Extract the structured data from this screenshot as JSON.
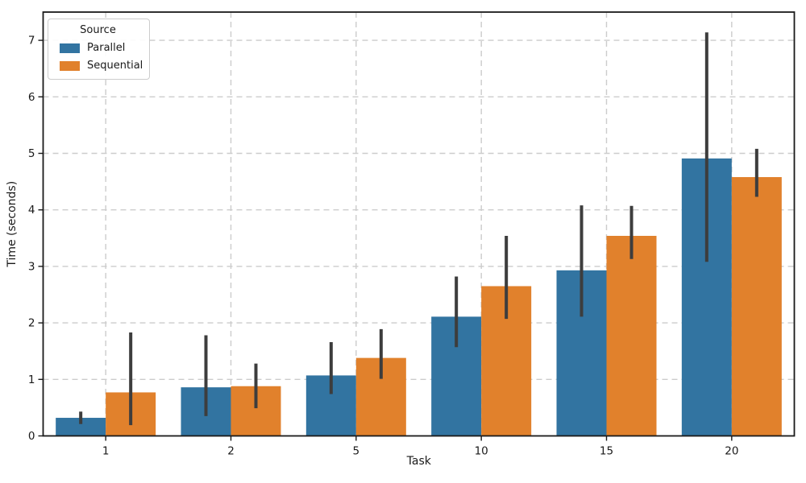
{
  "chart_data": {
    "type": "bar",
    "title": "",
    "xlabel": "Task",
    "ylabel": "Time (seconds)",
    "categories": [
      "1",
      "2",
      "5",
      "10",
      "15",
      "20"
    ],
    "series": [
      {
        "name": "Parallel",
        "color": "#3274a1",
        "values": [
          0.32,
          0.86,
          1.07,
          2.11,
          2.93,
          4.91
        ],
        "ci_low": [
          0.21,
          0.35,
          0.74,
          1.57,
          2.11,
          3.08
        ],
        "ci_high": [
          0.43,
          1.78,
          1.66,
          2.82,
          4.08,
          7.14
        ]
      },
      {
        "name": "Sequential",
        "color": "#e1812c",
        "values": [
          0.77,
          0.88,
          1.38,
          2.65,
          3.54,
          4.58
        ],
        "ci_low": [
          0.19,
          0.49,
          1.01,
          2.07,
          3.13,
          4.23
        ],
        "ci_high": [
          1.83,
          1.28,
          1.89,
          3.54,
          4.07,
          5.08
        ]
      }
    ],
    "yticks": [
      0,
      1,
      2,
      3,
      4,
      5,
      6,
      7
    ],
    "ylim": [
      0,
      7.5
    ],
    "grid": true,
    "grid_style": "dashed",
    "legend": {
      "title": "Source",
      "position": "upper-left"
    },
    "colors": {
      "error_bar": "#3d3d3d",
      "grid": "#cccccc",
      "spine": "#1a1a1a",
      "background": "#ffffff"
    }
  }
}
